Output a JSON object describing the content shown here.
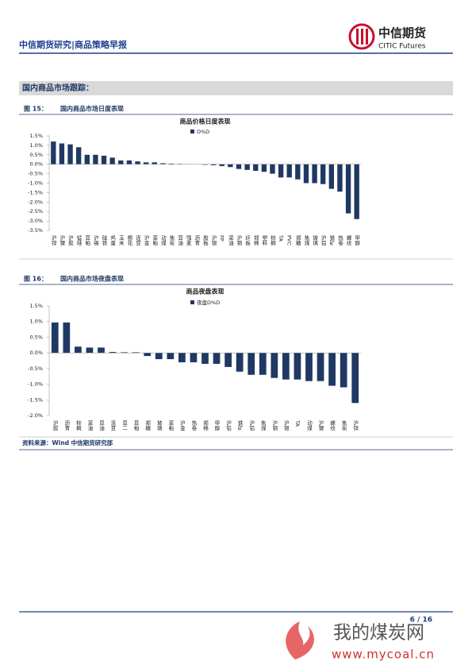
{
  "header": {
    "title": "中信期货研究|商品策略早报",
    "logo_cn": "中信期货",
    "logo_en": "CITIC Futures"
  },
  "section_title": "国内商品市场跟踪：",
  "figures": [
    {
      "label": "图 15：",
      "caption": "国内商品市场日度表现"
    },
    {
      "label": "图 16：",
      "caption": "国内商品市场夜盘表现"
    }
  ],
  "chart_data": [
    {
      "type": "bar",
      "title": "商品价格日度表现",
      "categories": [
        "沪锌",
        "沪镍",
        "沪胶",
        "锰硅",
        "豆粕",
        "沪锡",
        "硅铁",
        "鸡蛋",
        "玉米",
        "棉花",
        "连豆",
        "沪金",
        "菜粕",
        "动煤",
        "焦炭",
        "豆油",
        "强麦",
        "沥青",
        "胶板",
        "沪银",
        "PP",
        "菜油",
        "沪铜",
        "纤板",
        "郑棉",
        "塑料",
        "棕榈",
        "TA",
        "PVC",
        "郑糖",
        "焦煤",
        "玻璃",
        "沪铝",
        "铁矿",
        "热卷",
        "螺纹",
        "甲醇"
      ],
      "series": [
        {
          "name": "D%D",
          "color": "#1f3864",
          "values": [
            1.2,
            1.1,
            1.05,
            0.9,
            0.5,
            0.5,
            0.45,
            0.35,
            0.2,
            0.2,
            0.15,
            0.1,
            0.1,
            0.05,
            0.03,
            0.02,
            0.01,
            0,
            -0.03,
            -0.05,
            -0.1,
            -0.15,
            -0.25,
            -0.3,
            -0.35,
            -0.4,
            -0.5,
            -0.7,
            -0.7,
            -0.8,
            -1.0,
            -1.0,
            -1.05,
            -1.3,
            -1.45,
            -2.6,
            -2.9
          ]
        }
      ],
      "ylim": [
        -3.5,
        1.5
      ],
      "yticks": [
        {
          "value": 1.5,
          "label": "1.5%"
        },
        {
          "value": 1,
          "label": "1.0%"
        },
        {
          "value": 0.5,
          "label": "0.5%"
        },
        {
          "value": 0,
          "label": "0.0%"
        },
        {
          "value": -0.5,
          "label": "-0.5%"
        },
        {
          "value": -1,
          "label": "-1.0%"
        },
        {
          "value": -1.5,
          "label": "-1.5%"
        },
        {
          "value": -2,
          "label": "-2.0%"
        },
        {
          "value": -2.5,
          "label": "-2.5%"
        },
        {
          "value": -3,
          "label": "-3.0%"
        },
        {
          "value": -3.5,
          "label": "-3.5%"
        }
      ]
    },
    {
      "type": "bar",
      "title": "商品夜盘表现",
      "categories": [
        "沪胶",
        "沥青",
        "棕榈",
        "菜油",
        "豆油",
        "连豆",
        "豆二",
        "豆粕",
        "郑糖",
        "玻璃",
        "菜粕",
        "沪金",
        "热卷",
        "郑棉",
        "甲醇",
        "沪铅",
        "铁矿",
        "沪铝",
        "焦煤",
        "沪铜",
        "沪银",
        "TA",
        "动煤",
        "沪镍",
        "螺纹",
        "焦炭",
        "沪锌"
      ],
      "series": [
        {
          "name": "夜盘D%D",
          "color": "#1f3864",
          "values": [
            0.97,
            0.97,
            0.2,
            0.17,
            0.17,
            0.03,
            0.02,
            0.02,
            -0.1,
            -0.2,
            -0.2,
            -0.3,
            -0.3,
            -0.35,
            -0.35,
            -0.45,
            -0.6,
            -0.7,
            -0.7,
            -0.8,
            -0.85,
            -0.85,
            -0.9,
            -0.9,
            -1.05,
            -1.1,
            -1.6
          ]
        }
      ],
      "ylim": [
        -2,
        1.5
      ],
      "yticks": [
        {
          "value": 1.5,
          "label": "1.5%"
        },
        {
          "value": 1,
          "label": "1.0%"
        },
        {
          "value": 0.5,
          "label": "0.5%"
        },
        {
          "value": 0,
          "label": "0.0%"
        },
        {
          "value": -0.5,
          "label": "-0.5%"
        },
        {
          "value": -1,
          "label": "-1.0%"
        },
        {
          "value": -1.5,
          "label": "-1.5%"
        },
        {
          "value": -2,
          "label": "-2.0%"
        }
      ]
    }
  ],
  "source": "资料来源：Wind 中信期货研究部",
  "page": "6 / 16",
  "watermark": {
    "name": "我的煤炭网",
    "url": "www.mycoal.cn"
  }
}
